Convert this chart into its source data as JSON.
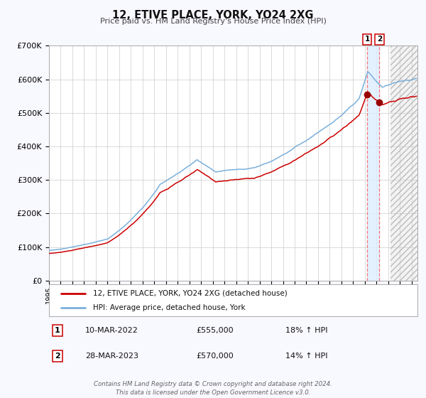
{
  "title": "12, ETIVE PLACE, YORK, YO24 2XG",
  "subtitle": "Price paid vs. HM Land Registry's House Price Index (HPI)",
  "ylim": [
    0,
    700000
  ],
  "yticks": [
    0,
    100000,
    200000,
    300000,
    400000,
    500000,
    600000,
    700000
  ],
  "ytick_labels": [
    "£0",
    "£100K",
    "£200K",
    "£300K",
    "£400K",
    "£500K",
    "£600K",
    "£700K"
  ],
  "xlim_start": 1995.0,
  "xlim_end": 2026.5,
  "xticks": [
    1995,
    1996,
    1997,
    1998,
    1999,
    2000,
    2001,
    2002,
    2003,
    2004,
    2005,
    2006,
    2007,
    2008,
    2009,
    2010,
    2011,
    2012,
    2013,
    2014,
    2015,
    2016,
    2017,
    2018,
    2019,
    2020,
    2021,
    2022,
    2023,
    2024,
    2025,
    2026
  ],
  "red_color": "#cc0000",
  "blue_color": "#7aafdb",
  "marker_color": "#990000",
  "vline1_x": 2022.19,
  "vline2_x": 2023.24,
  "hatch_start": 2024.17,
  "sale1_date": "10-MAR-2022",
  "sale1_price": "£555,000",
  "sale1_hpi": "18% ↑ HPI",
  "sale2_date": "28-MAR-2023",
  "sale2_price": "£570,000",
  "sale2_hpi": "14% ↑ HPI",
  "legend_red": "12, ETIVE PLACE, YORK, YO24 2XG (detached house)",
  "legend_blue": "HPI: Average price, detached house, York",
  "footer1": "Contains HM Land Registry data © Crown copyright and database right 2024.",
  "footer2": "This data is licensed under the Open Government Licence v3.0.",
  "bg_color": "#f8f8ff",
  "plot_bg": "#ffffff",
  "grid_color": "#cccccc",
  "shade_color": "#ddeeff",
  "sale1_y": 555000,
  "sale2_y": 570000
}
